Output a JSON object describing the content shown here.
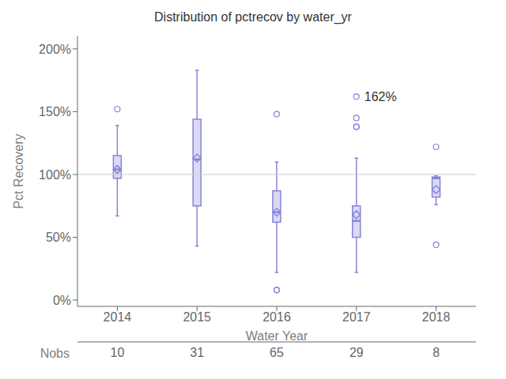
{
  "chart_data": {
    "type": "box",
    "title": "Distribution of pctrecov by water_yr",
    "x_label": "Water Year",
    "y_label": "Pct Recovery",
    "categories": [
      "2014",
      "2015",
      "2016",
      "2017",
      "2018"
    ],
    "boxes": [
      {
        "q1": 97,
        "median": 104,
        "q3": 115,
        "mean": 104,
        "whislo": 67,
        "whishi": 139,
        "fliers": [
          152
        ]
      },
      {
        "q1": 75,
        "median": 112,
        "q3": 144,
        "mean": 113,
        "whislo": 43,
        "whishi": 183,
        "fliers": []
      },
      {
        "q1": 62,
        "median": 70,
        "q3": 87,
        "mean": 70,
        "whislo": 22,
        "whishi": 110,
        "fliers": [
          148,
          8,
          8
        ]
      },
      {
        "q1": 50,
        "median": 63,
        "q3": 75,
        "mean": 68,
        "whislo": 22,
        "whishi": 113,
        "fliers": [
          162,
          145,
          138,
          138
        ]
      },
      {
        "q1": 82,
        "median": 97,
        "q3": 98,
        "mean": 88,
        "whislo": 76,
        "whishi": 99,
        "fliers": [
          122,
          44
        ]
      }
    ],
    "nobs": {
      "label": "Nobs",
      "values": [
        10,
        31,
        65,
        29,
        8
      ]
    },
    "annotations": [
      {
        "text": "162%",
        "category": "2017",
        "y": 162
      }
    ],
    "ref_line": 100,
    "ylim": [
      -5,
      210
    ],
    "yticks": [
      {
        "value": 0,
        "label": "0%"
      },
      {
        "value": 50,
        "label": "50%"
      },
      {
        "value": 100,
        "label": "100%"
      },
      {
        "value": 150,
        "label": "150%"
      },
      {
        "value": 200,
        "label": "200%"
      }
    ],
    "color": "#8884d8"
  }
}
